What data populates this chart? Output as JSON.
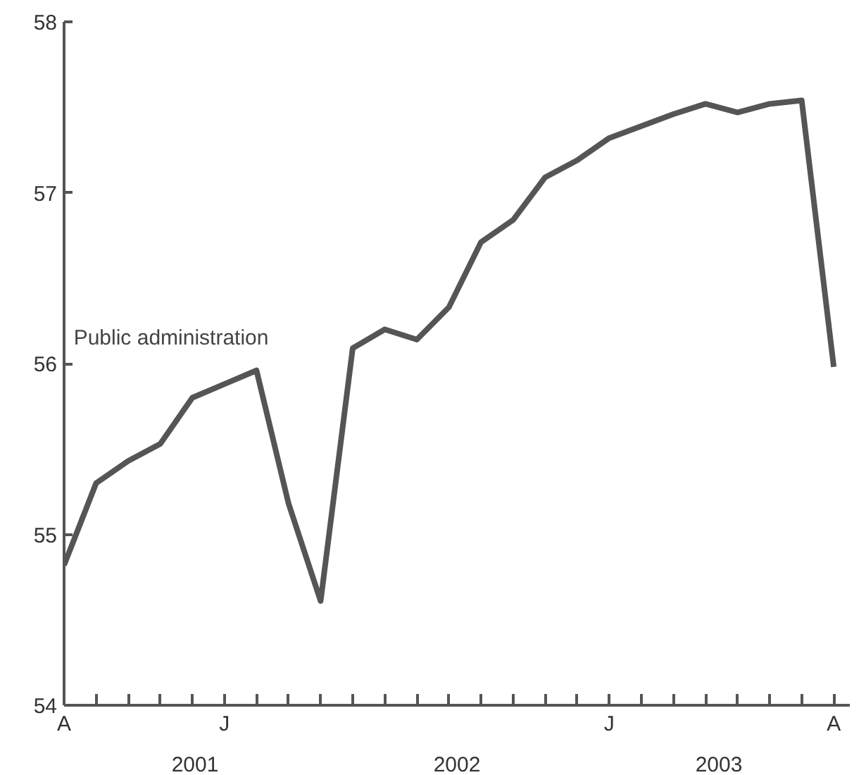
{
  "chart_data": {
    "type": "line",
    "categories": [
      "A",
      null,
      null,
      null,
      null,
      "J",
      null,
      null,
      null,
      null,
      null,
      null,
      null,
      null,
      null,
      null,
      null,
      "J",
      null,
      null,
      null,
      null,
      null,
      null,
      "A"
    ],
    "series": [
      {
        "name": "Public administration",
        "color": "#555555",
        "values": [
          54.82,
          55.3,
          55.43,
          55.53,
          55.8,
          55.88,
          55.96,
          55.18,
          54.61,
          56.09,
          56.2,
          56.14,
          56.33,
          56.71,
          56.84,
          57.09,
          57.19,
          57.32,
          57.39,
          57.46,
          57.52,
          57.47,
          57.52,
          57.54,
          55.98
        ]
      }
    ],
    "ylim": [
      54,
      58
    ],
    "yticks": [
      54,
      55,
      56,
      57,
      58
    ],
    "annotations": [
      "2001",
      "2002",
      "2003"
    ],
    "grid": false,
    "marker": "none",
    "line_style": "solid"
  }
}
